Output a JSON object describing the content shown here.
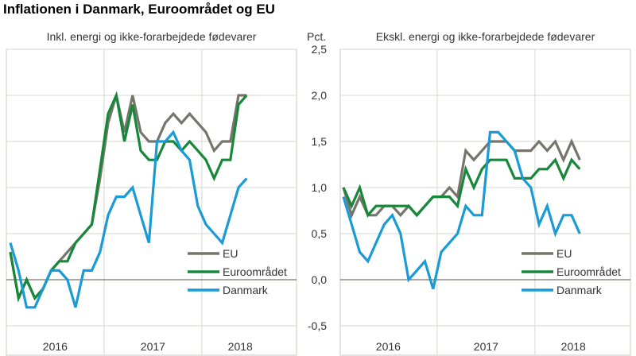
{
  "title": "Inflationen i Danmark, Euroområdet og EU",
  "colors": {
    "EU": "#77756b",
    "Euroområdet": "#17873a",
    "Danmark": "#1a9ad6"
  },
  "chart_data": [
    {
      "type": "line",
      "title": "Inkl. energi og ikke-forarbejdede fødevarer",
      "ylabel": "Pct.",
      "ylim": [
        -0.5,
        2.5
      ],
      "yticks": [
        "-0,5",
        "0,0",
        "0,5",
        "1,0",
        "1,5",
        "2,0",
        "2,5"
      ],
      "x_start": "2016-01",
      "x_end": "2018-06",
      "xtick_labels": [
        "2016",
        "2017",
        "2018"
      ],
      "legend": "bottom-right",
      "grid": true,
      "series": [
        {
          "name": "EU",
          "values": [
            0.3,
            -0.2,
            0,
            -0.2,
            -0.1,
            0.1,
            0.2,
            0.3,
            0.4,
            0.5,
            0.6,
            1.1,
            1.7,
            2.0,
            1.6,
            2.0,
            1.6,
            1.5,
            1.5,
            1.7,
            1.8,
            1.7,
            1.8,
            1.7,
            1.6,
            1.4,
            1.5,
            1.5,
            2.0,
            2.0
          ]
        },
        {
          "name": "Euroområdet",
          "values": [
            0.3,
            -0.2,
            0,
            -0.2,
            -0.1,
            0.1,
            0.2,
            0.2,
            0.4,
            0.5,
            0.6,
            1.2,
            1.8,
            2.0,
            1.5,
            1.9,
            1.4,
            1.3,
            1.3,
            1.5,
            1.5,
            1.4,
            1.5,
            1.4,
            1.3,
            1.1,
            1.3,
            1.3,
            1.9,
            2.0
          ]
        },
        {
          "name": "Danmark",
          "values": [
            0.4,
            0.1,
            -0.3,
            -0.3,
            -0.1,
            0.1,
            0.1,
            0.0,
            -0.3,
            0.1,
            0.1,
            0.3,
            0.7,
            0.9,
            0.9,
            1.0,
            0.7,
            0.4,
            1.5,
            1.5,
            1.6,
            1.4,
            1.3,
            0.8,
            0.6,
            0.5,
            0.4,
            0.7,
            1.0,
            1.1
          ]
        }
      ]
    },
    {
      "type": "line",
      "title": "Ekskl. energi og ikke-forarbejdede fødevarer",
      "ylim": [
        -0.5,
        2.5
      ],
      "x_start": "2016-01",
      "x_end": "2018-06",
      "xtick_labels": [
        "2016",
        "2017",
        "2018"
      ],
      "legend": "bottom-right",
      "grid": true,
      "series": [
        {
          "name": "EU",
          "values": [
            1.0,
            0.7,
            0.9,
            0.7,
            0.7,
            0.8,
            0.8,
            0.7,
            0.8,
            0.7,
            0.8,
            0.9,
            0.9,
            1.0,
            0.9,
            1.4,
            1.3,
            1.4,
            1.5,
            1.5,
            1.5,
            1.4,
            1.4,
            1.4,
            1.5,
            1.4,
            1.5,
            1.3,
            1.5,
            1.3
          ]
        },
        {
          "name": "Euroområdet",
          "values": [
            1.0,
            0.8,
            1.0,
            0.7,
            0.8,
            0.8,
            0.8,
            0.8,
            0.8,
            0.7,
            0.8,
            0.9,
            0.9,
            0.9,
            0.8,
            1.2,
            1.0,
            1.2,
            1.3,
            1.3,
            1.3,
            1.1,
            1.1,
            1.1,
            1.2,
            1.2,
            1.3,
            1.1,
            1.3,
            1.2
          ]
        },
        {
          "name": "Danmark",
          "values": [
            0.9,
            0.6,
            0.3,
            0.2,
            0.4,
            0.6,
            0.7,
            0.5,
            0.0,
            0.1,
            0.2,
            -0.1,
            0.3,
            0.4,
            0.5,
            0.8,
            0.7,
            0.7,
            1.6,
            1.6,
            1.5,
            1.4,
            1.1,
            1.0,
            0.6,
            0.8,
            0.5,
            0.7,
            0.7,
            0.5
          ]
        }
      ]
    }
  ]
}
